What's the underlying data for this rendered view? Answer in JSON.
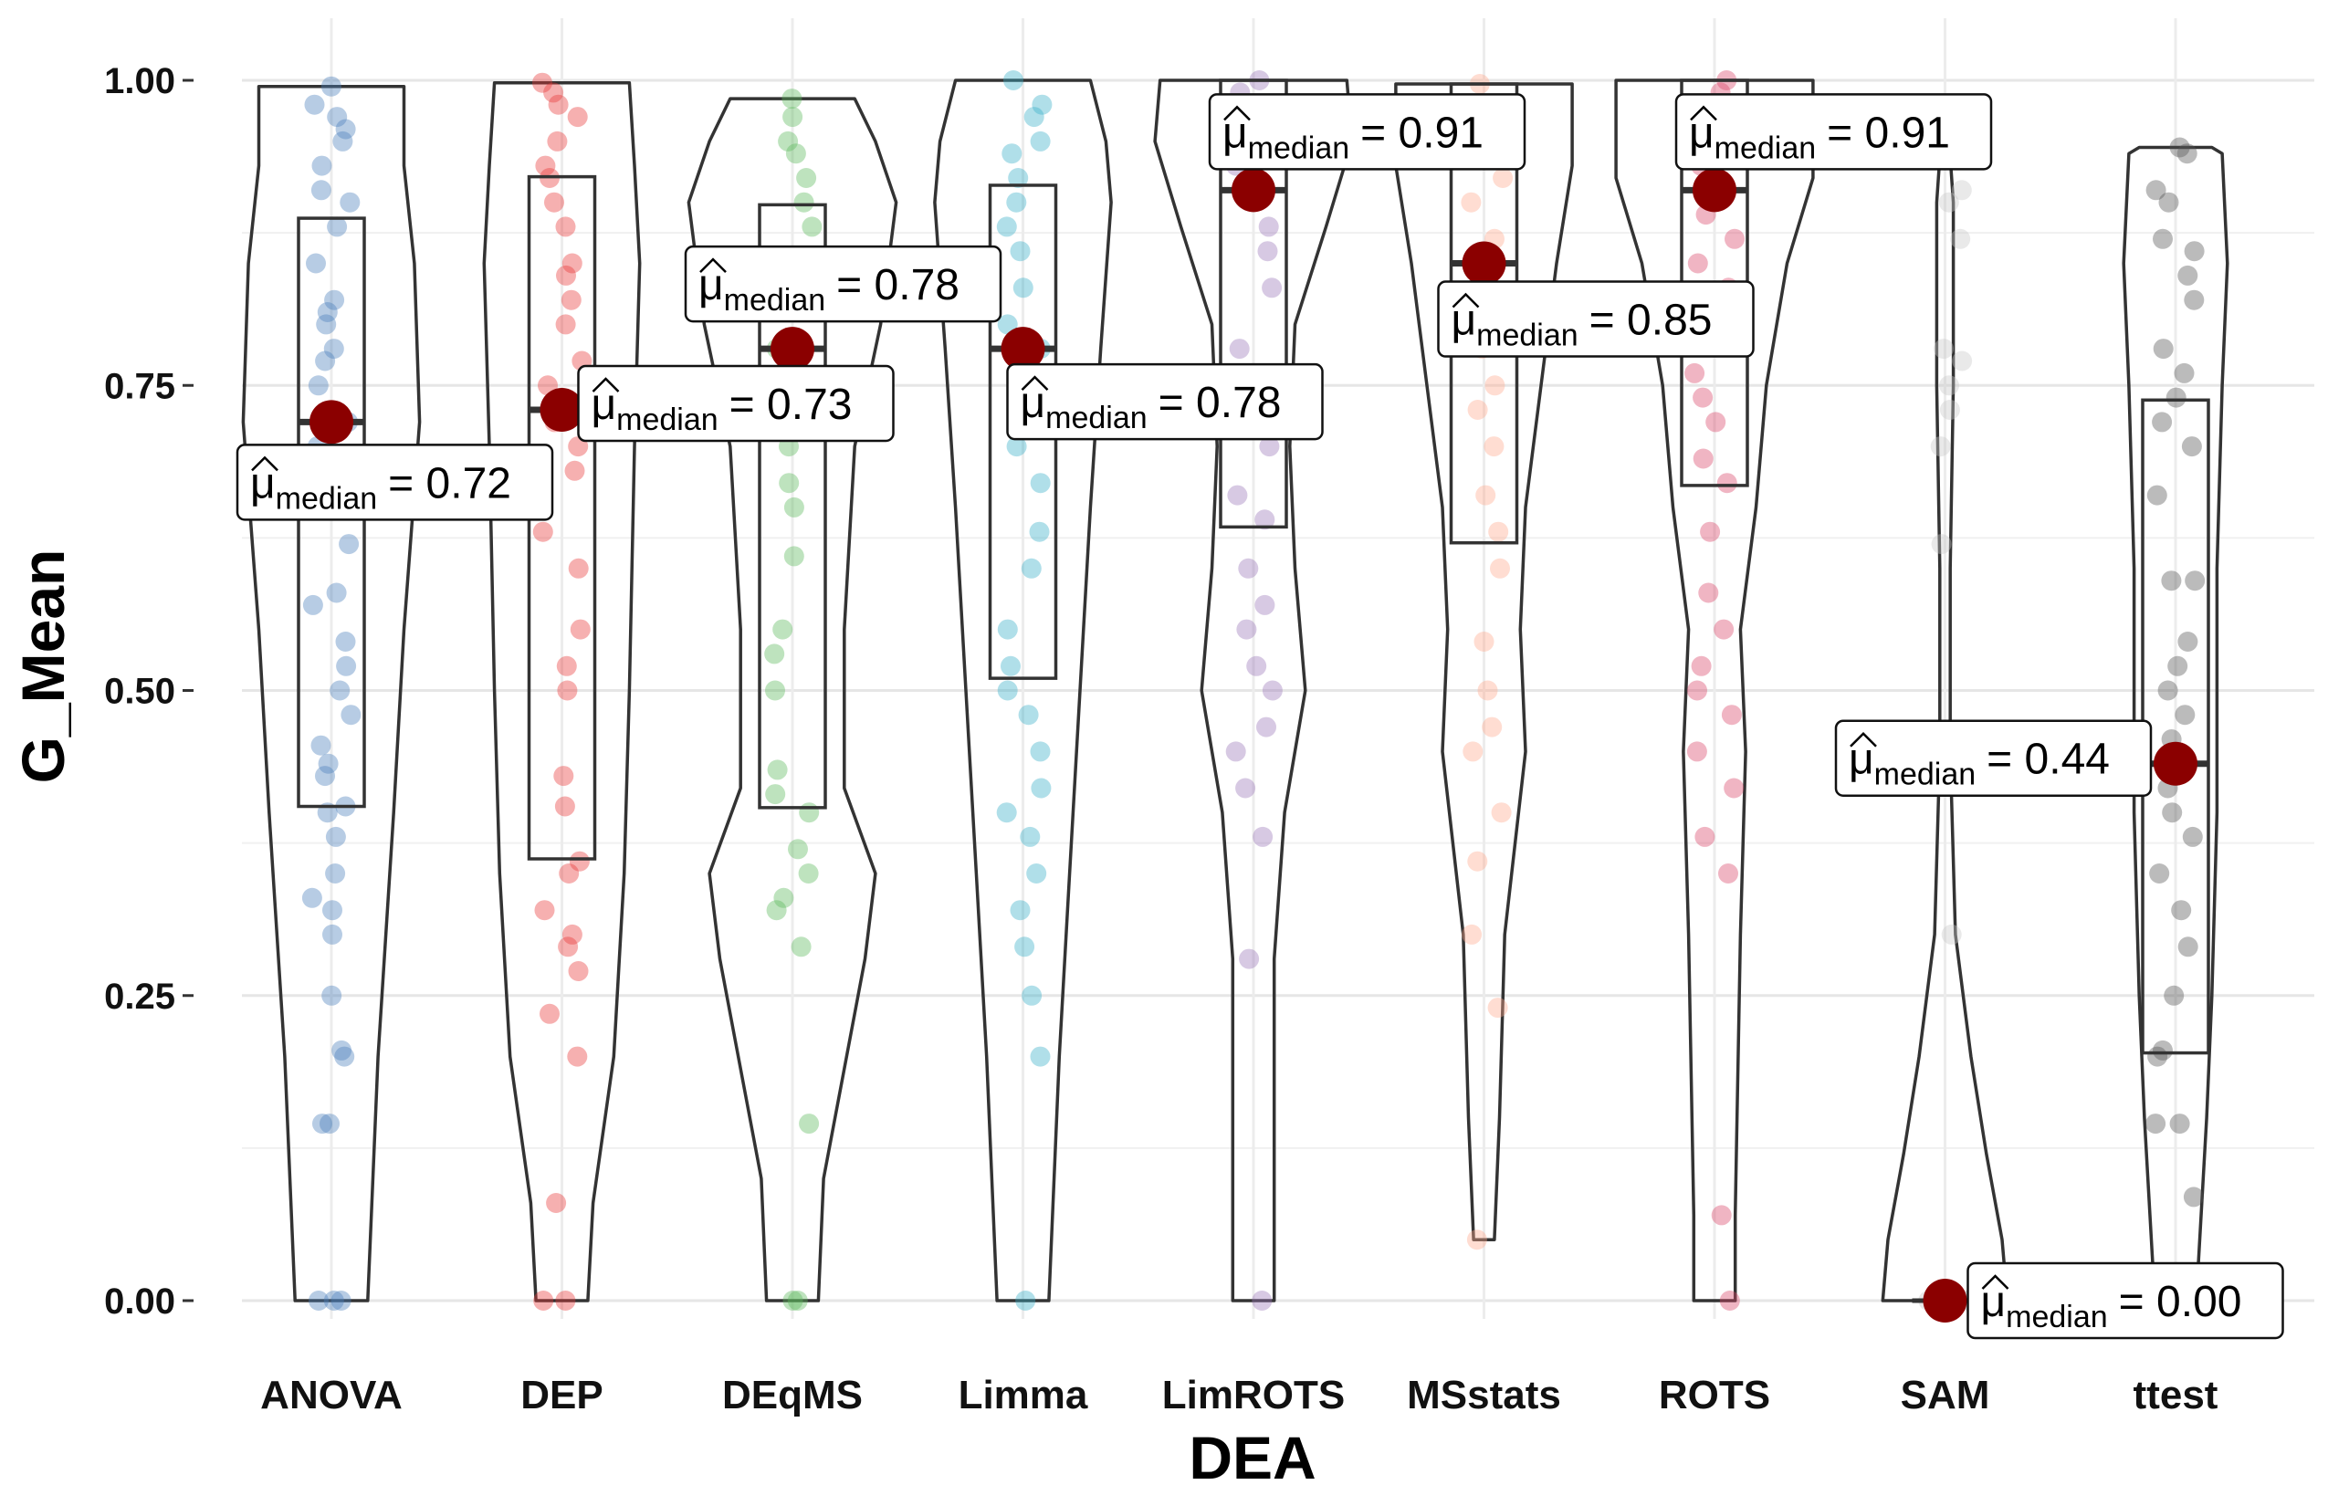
{
  "chart_data": {
    "type": "violin",
    "xlabel": "DEA",
    "ylabel": "G_Mean",
    "ylim": [
      0,
      1
    ],
    "yticks": [
      "0.00",
      "0.25",
      "0.50",
      "0.75",
      "1.00"
    ],
    "grid": true,
    "label_prefix": "μ",
    "label_subscript": "median",
    "median_color": "#8b0000",
    "categories": [
      "ANOVA",
      "DEP",
      "DEqMS",
      "Limma",
      "LimROTS",
      "MSstats",
      "ROTS",
      "SAM",
      "ttest"
    ],
    "series": [
      {
        "name": "ANOVA",
        "color": "#4a7fbb",
        "median": 0.72,
        "label": "= 0.72",
        "q1": 0.405,
        "q3": 0.887,
        "violin": [
          [
            0.0,
            0.035
          ],
          [
            0.2,
            0.045
          ],
          [
            0.4,
            0.06
          ],
          [
            0.55,
            0.07
          ],
          [
            0.72,
            0.085
          ],
          [
            0.85,
            0.08
          ],
          [
            0.93,
            0.07
          ],
          [
            0.995,
            0.07
          ]
        ],
        "points": [
          0,
          0,
          0,
          0.145,
          0.145,
          0.2,
          0.205,
          0.25,
          0.3,
          0.32,
          0.33,
          0.35,
          0.38,
          0.4,
          0.405,
          0.43,
          0.44,
          0.455,
          0.48,
          0.5,
          0.52,
          0.54,
          0.57,
          0.58,
          0.62,
          0.65,
          0.68,
          0.7,
          0.72,
          0.75,
          0.77,
          0.78,
          0.8,
          0.81,
          0.82,
          0.85,
          0.88,
          0.9,
          0.91,
          0.93,
          0.95,
          0.96,
          0.97,
          0.98,
          0.995
        ]
      },
      {
        "name": "DEP",
        "color": "#e83a3a",
        "median": 0.73,
        "label": "= 0.73",
        "q1": 0.362,
        "q3": 0.921,
        "violin": [
          [
            0.0,
            0.025
          ],
          [
            0.08,
            0.03
          ],
          [
            0.2,
            0.05
          ],
          [
            0.35,
            0.06
          ],
          [
            0.5,
            0.065
          ],
          [
            0.7,
            0.07
          ],
          [
            0.85,
            0.075
          ],
          [
            0.93,
            0.07
          ],
          [
            0.998,
            0.065
          ]
        ],
        "points": [
          0,
          0,
          0.08,
          0.2,
          0.235,
          0.27,
          0.29,
          0.3,
          0.32,
          0.35,
          0.36,
          0.405,
          0.43,
          0.5,
          0.52,
          0.55,
          0.6,
          0.63,
          0.68,
          0.7,
          0.72,
          0.75,
          0.77,
          0.8,
          0.82,
          0.84,
          0.85,
          0.88,
          0.9,
          0.92,
          0.93,
          0.95,
          0.97,
          0.98,
          0.99,
          0.998
        ]
      },
      {
        "name": "DEqMS",
        "color": "#5cb85c",
        "median": 0.78,
        "label": "= 0.78",
        "q1": 0.404,
        "q3": 0.898,
        "violin": [
          [
            0.0,
            0.025
          ],
          [
            0.1,
            0.03
          ],
          [
            0.28,
            0.07
          ],
          [
            0.35,
            0.08
          ],
          [
            0.42,
            0.05
          ],
          [
            0.55,
            0.05
          ],
          [
            0.7,
            0.06
          ],
          [
            0.8,
            0.085
          ],
          [
            0.9,
            0.1
          ],
          [
            0.95,
            0.08
          ],
          [
            0.985,
            0.06
          ]
        ],
        "points": [
          0,
          0,
          0.145,
          0.29,
          0.32,
          0.33,
          0.35,
          0.37,
          0.4,
          0.415,
          0.435,
          0.5,
          0.53,
          0.55,
          0.61,
          0.65,
          0.67,
          0.7,
          0.75,
          0.78,
          0.82,
          0.85,
          0.88,
          0.9,
          0.92,
          0.94,
          0.95,
          0.97,
          0.985
        ]
      },
      {
        "name": "Limma",
        "color": "#3ab0c9",
        "median": 0.78,
        "label": "= 0.78",
        "q1": 0.51,
        "q3": 0.914,
        "violin": [
          [
            0.0,
            0.025
          ],
          [
            0.2,
            0.035
          ],
          [
            0.35,
            0.045
          ],
          [
            0.5,
            0.055
          ],
          [
            0.65,
            0.065
          ],
          [
            0.78,
            0.075
          ],
          [
            0.9,
            0.085
          ],
          [
            0.95,
            0.08
          ],
          [
            1.0,
            0.065
          ]
        ],
        "points": [
          0,
          0.2,
          0.25,
          0.29,
          0.32,
          0.35,
          0.38,
          0.4,
          0.42,
          0.45,
          0.48,
          0.5,
          0.52,
          0.55,
          0.6,
          0.63,
          0.67,
          0.7,
          0.75,
          0.78,
          0.8,
          0.83,
          0.86,
          0.88,
          0.9,
          0.92,
          0.94,
          0.95,
          0.97,
          0.98,
          1.0
        ]
      },
      {
        "name": "LimROTS",
        "color": "#9b77b8",
        "median": 0.91,
        "label": "= 0.91",
        "q1": 0.634,
        "q3": 1.0,
        "violin": [
          [
            0.0,
            0.02
          ],
          [
            0.28,
            0.02
          ],
          [
            0.4,
            0.03
          ],
          [
            0.5,
            0.05
          ],
          [
            0.6,
            0.04
          ],
          [
            0.7,
            0.035
          ],
          [
            0.8,
            0.04
          ],
          [
            0.88,
            0.07
          ],
          [
            0.95,
            0.095
          ],
          [
            1.0,
            0.09
          ]
        ],
        "points": [
          0,
          0.28,
          0.38,
          0.42,
          0.45,
          0.47,
          0.5,
          0.52,
          0.55,
          0.57,
          0.6,
          0.64,
          0.66,
          0.7,
          0.74,
          0.78,
          0.83,
          0.86,
          0.88,
          0.91,
          0.93,
          0.95,
          0.97,
          0.99,
          1.0
        ]
      },
      {
        "name": "MSstats",
        "color": "#ffab8f",
        "median": 0.85,
        "label": "= 0.85",
        "q1": 0.621,
        "q3": 0.997,
        "violin": [
          [
            0.05,
            0.01
          ],
          [
            0.15,
            0.015
          ],
          [
            0.3,
            0.02
          ],
          [
            0.45,
            0.04
          ],
          [
            0.55,
            0.035
          ],
          [
            0.65,
            0.04
          ],
          [
            0.75,
            0.055
          ],
          [
            0.85,
            0.07
          ],
          [
            0.93,
            0.085
          ],
          [
            0.997,
            0.085
          ]
        ],
        "points": [
          0.05,
          0.24,
          0.3,
          0.36,
          0.4,
          0.45,
          0.47,
          0.5,
          0.54,
          0.6,
          0.63,
          0.66,
          0.7,
          0.73,
          0.75,
          0.78,
          0.8,
          0.82,
          0.85,
          0.87,
          0.9,
          0.92,
          0.94,
          0.96,
          0.98,
          0.997
        ]
      },
      {
        "name": "ROTS",
        "color": "#d9466a",
        "median": 0.91,
        "label": "= 0.91",
        "q1": 0.668,
        "q3": 1.0,
        "violin": [
          [
            0.0,
            0.02
          ],
          [
            0.07,
            0.02
          ],
          [
            0.3,
            0.025
          ],
          [
            0.45,
            0.03
          ],
          [
            0.55,
            0.025
          ],
          [
            0.65,
            0.04
          ],
          [
            0.75,
            0.05
          ],
          [
            0.85,
            0.07
          ],
          [
            0.92,
            0.095
          ],
          [
            1.0,
            0.095
          ]
        ],
        "points": [
          0,
          0.07,
          0.35,
          0.38,
          0.42,
          0.45,
          0.48,
          0.5,
          0.52,
          0.55,
          0.58,
          0.63,
          0.67,
          0.69,
          0.72,
          0.74,
          0.76,
          0.8,
          0.83,
          0.85,
          0.87,
          0.89,
          0.91,
          0.93,
          0.96,
          0.98,
          0.99,
          1.0
        ]
      },
      {
        "name": "SAM",
        "color": "#c8c8c8",
        "median": 0.0,
        "label": "= 0.00",
        "q1": 0.0,
        "q3": 0.0,
        "violin": [
          [
            0.0,
            0.06
          ],
          [
            0.05,
            0.055
          ],
          [
            0.12,
            0.04
          ],
          [
            0.2,
            0.025
          ],
          [
            0.3,
            0.01
          ],
          [
            0.45,
            0.005
          ],
          [
            0.6,
            0.005
          ],
          [
            0.75,
            0.008
          ],
          [
            0.9,
            0.008
          ],
          [
            0.95,
            0.004
          ]
        ],
        "points": [
          0,
          0,
          0,
          0,
          0.3,
          0.62,
          0.7,
          0.73,
          0.75,
          0.77,
          0.78,
          0.87,
          0.9,
          0.91
        ]
      },
      {
        "name": "ttest",
        "color": "#555555",
        "median": 0.44,
        "label": "= 0.44",
        "q1": 0.203,
        "q3": 0.738,
        "violin": [
          [
            0.0,
            0.02
          ],
          [
            0.15,
            0.03
          ],
          [
            0.25,
            0.035
          ],
          [
            0.4,
            0.04
          ],
          [
            0.5,
            0.04
          ],
          [
            0.6,
            0.04
          ],
          [
            0.75,
            0.045
          ],
          [
            0.85,
            0.05
          ],
          [
            0.94,
            0.045
          ],
          [
            0.945,
            0.035
          ]
        ],
        "points": [
          0.085,
          0.145,
          0.145,
          0.2,
          0.205,
          0.25,
          0.29,
          0.32,
          0.35,
          0.38,
          0.4,
          0.42,
          0.44,
          0.46,
          0.48,
          0.5,
          0.52,
          0.54,
          0.59,
          0.59,
          0.66,
          0.7,
          0.72,
          0.74,
          0.76,
          0.78,
          0.82,
          0.84,
          0.86,
          0.87,
          0.9,
          0.91,
          0.94,
          0.945
        ]
      }
    ]
  }
}
